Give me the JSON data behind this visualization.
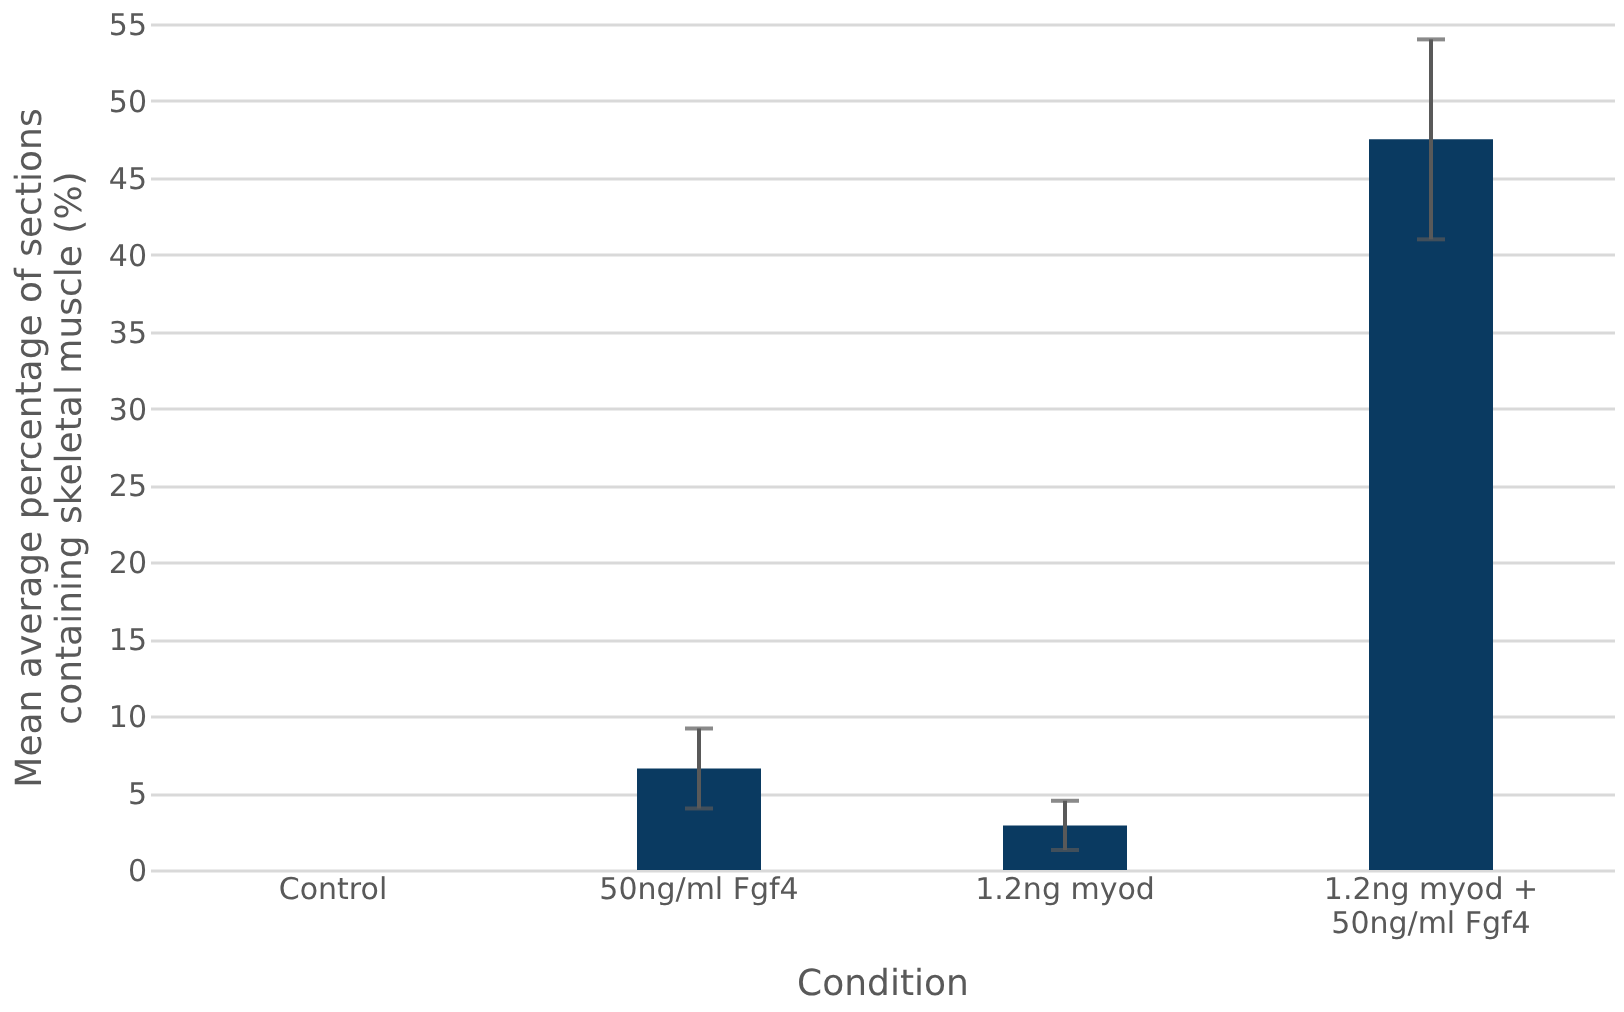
{
  "chart_data": {
    "type": "bar",
    "xlabel": "Condition",
    "ylabel": "Mean average percentage of sections containing skeletal muscle (%)",
    "categories": [
      "Control",
      "50ng/ml Fgf4",
      "1.2ng myod",
      "1.2ng myod + 50ng/ml Fgf4"
    ],
    "values": [
      0,
      6.6,
      2.9,
      47.5
    ],
    "errors": [
      null,
      2.6,
      1.6,
      6.5
    ],
    "color": "#0a3a61",
    "ylim": [
      0,
      55
    ],
    "yticks": [
      0,
      5,
      10,
      15,
      20,
      25,
      30,
      35,
      40,
      45,
      50,
      55
    ],
    "grid": "y"
  }
}
